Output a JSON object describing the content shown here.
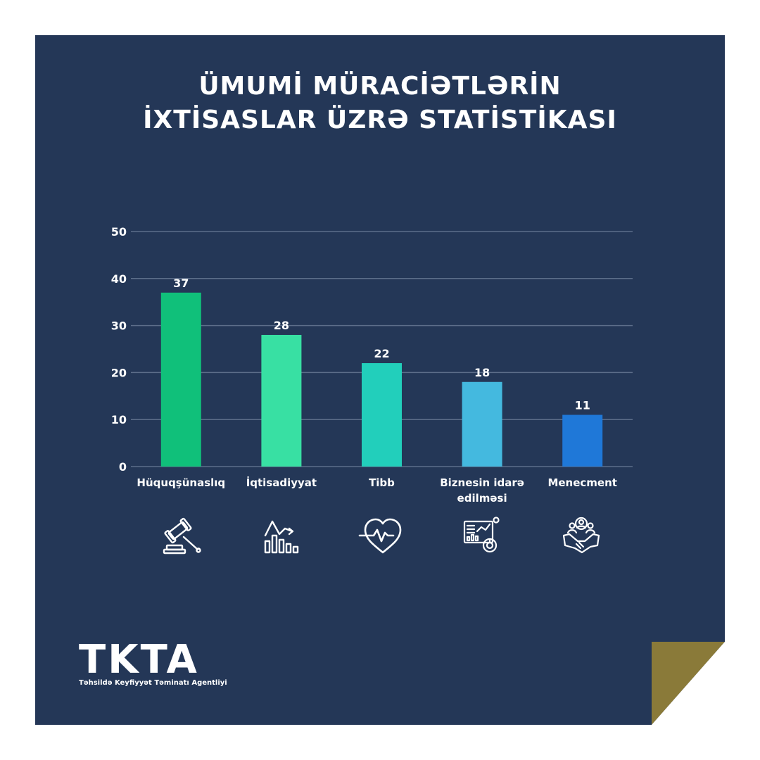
{
  "title": {
    "line1": "ÜMUMİ MÜRACİƏTLƏRİN",
    "line2": "İXTİSASLAR ÜZRƏ STATİSTİKASI"
  },
  "chart_data": {
    "type": "bar",
    "title": "ÜMUMİ MÜRACİƏTLƏRİN İXTİSASLAR ÜZRƏ STATİSTİKASI",
    "categories": [
      "Hüquqşünaslıq",
      "İqtisadiyyat",
      "Tibb",
      "Biznesin idarə edilməsi",
      "Menecment"
    ],
    "category_lines": [
      [
        "Hüquqşünaslıq"
      ],
      [
        "İqtisadiyyat"
      ],
      [
        "Tibb"
      ],
      [
        "Biznesin idarə",
        "edilməsi"
      ],
      [
        "Menecment"
      ]
    ],
    "values": [
      37,
      28,
      22,
      18,
      11
    ],
    "value_labels": [
      "37",
      "28",
      "22",
      "18",
      "11"
    ],
    "bar_colors": [
      "#10c07a",
      "#38e0a3",
      "#22cfbb",
      "#44b9df",
      "#1f78d8"
    ],
    "ylim": [
      0,
      50
    ],
    "yticks": [
      0,
      10,
      20,
      30,
      40,
      50
    ],
    "ytick_labels": [
      "0",
      "10",
      "20",
      "30",
      "40",
      "50"
    ],
    "grid": true,
    "xlabel": "",
    "ylabel": ""
  },
  "icons": [
    "gavel-icon",
    "chart-trend-icon",
    "heart-pulse-icon",
    "analytics-dashboard-icon",
    "team-handshake-icon"
  ],
  "logo": {
    "text": "TKTA",
    "subtitle": "Təhsildə Keyfiyyət Təminatı Agentliyi"
  },
  "colors": {
    "background": "#243757",
    "gridline": "#5d6e8a",
    "corner": "#8a7a39"
  }
}
